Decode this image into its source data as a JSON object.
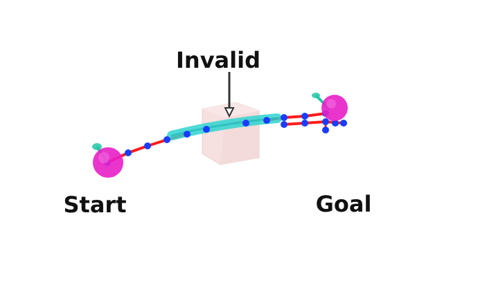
{
  "labels": {
    "invalid": "Invalid",
    "start": "Start",
    "goal": "Goal"
  },
  "colors": {
    "path": "#ff1a1a",
    "waypoint": "#1a3cff",
    "invalid_segment": "#2fd3cf",
    "obstacle": "#f6dede",
    "endpoint": "#e81fc7",
    "frame_marker": "#22c7a6",
    "arrow": "#333333"
  },
  "icons": {
    "obstacle": "cube-obstacle",
    "start_marker": "sphere-start-marker",
    "goal_marker": "sphere-goal-marker",
    "pointer": "down-arrow-pointer"
  }
}
